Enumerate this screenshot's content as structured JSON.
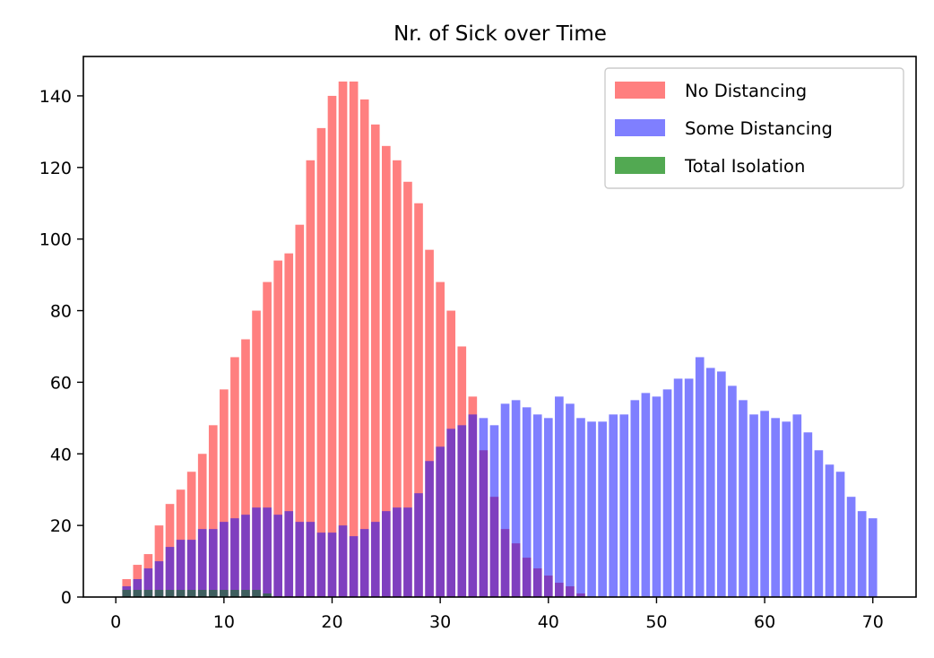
{
  "chart_data": {
    "type": "bar",
    "title": "Nr. of Sick over Time",
    "xlabel": "",
    "ylabel": "",
    "xlim": [
      -3,
      74
    ],
    "ylim": [
      0,
      151
    ],
    "xticks": [
      0,
      10,
      20,
      30,
      40,
      50,
      60,
      70
    ],
    "yticks": [
      0,
      20,
      40,
      60,
      80,
      100,
      120,
      140
    ],
    "legend_position": "top-right",
    "bar_opacity": 0.5,
    "series": [
      {
        "name": "No Distancing",
        "color": "#ff0000",
        "x": [
          1,
          2,
          3,
          4,
          5,
          6,
          7,
          8,
          9,
          10,
          11,
          12,
          13,
          14,
          15,
          16,
          17,
          18,
          19,
          20,
          21,
          22,
          23,
          24,
          25,
          26,
          27,
          28,
          29,
          30,
          31,
          32,
          33,
          34,
          35,
          36,
          37,
          38,
          39,
          40,
          41,
          42,
          43
        ],
        "values": [
          5,
          9,
          12,
          20,
          26,
          30,
          35,
          40,
          48,
          58,
          67,
          72,
          80,
          88,
          94,
          96,
          104,
          122,
          131,
          140,
          144,
          144,
          139,
          132,
          126,
          122,
          116,
          110,
          97,
          88,
          80,
          70,
          56,
          41,
          28,
          19,
          15,
          11,
          8,
          6,
          4,
          3,
          1
        ]
      },
      {
        "name": "Some Distancing",
        "color": "#0000ff",
        "x": [
          1,
          2,
          3,
          4,
          5,
          6,
          7,
          8,
          9,
          10,
          11,
          12,
          13,
          14,
          15,
          16,
          17,
          18,
          19,
          20,
          21,
          22,
          23,
          24,
          25,
          26,
          27,
          28,
          29,
          30,
          31,
          32,
          33,
          34,
          35,
          36,
          37,
          38,
          39,
          40,
          41,
          42,
          43,
          44,
          45,
          46,
          47,
          48,
          49,
          50,
          51,
          52,
          53,
          54,
          55,
          56,
          57,
          58,
          59,
          60,
          61,
          62,
          63,
          64,
          65,
          66,
          67,
          68,
          69,
          70
        ],
        "values": [
          3,
          5,
          8,
          10,
          14,
          16,
          16,
          19,
          19,
          21,
          22,
          23,
          25,
          25,
          23,
          24,
          21,
          21,
          18,
          18,
          20,
          17,
          19,
          21,
          24,
          25,
          25,
          29,
          38,
          42,
          47,
          48,
          51,
          50,
          48,
          54,
          55,
          53,
          51,
          50,
          56,
          54,
          50,
          49,
          49,
          51,
          51,
          55,
          57,
          56,
          58,
          61,
          61,
          67,
          64,
          63,
          59,
          55,
          51,
          52,
          50,
          49,
          51,
          46,
          41,
          37,
          35,
          28,
          24,
          22
        ]
      },
      {
        "name": "Total Isolation",
        "color": "#008000",
        "x": [
          1,
          2,
          3,
          4,
          5,
          6,
          7,
          8,
          9,
          10,
          11,
          12,
          13,
          14
        ],
        "values": [
          2,
          2,
          2,
          2,
          2,
          2,
          2,
          2,
          2,
          2,
          2,
          2,
          2,
          1
        ]
      }
    ]
  }
}
